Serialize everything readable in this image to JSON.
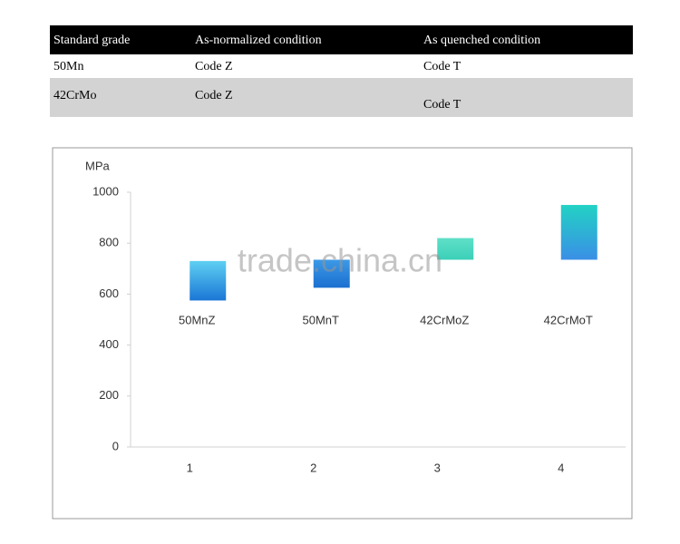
{
  "table": {
    "header": [
      "Standard grade",
      "As-normalized condition",
      "As quenched condition"
    ],
    "rows": [
      [
        "50Mn",
        "Code Z",
        "Code T"
      ],
      [
        "42CrMo",
        "Code Z",
        "Code T"
      ]
    ]
  },
  "chart_data": {
    "type": "floating-bar",
    "y_label": "MPa",
    "xticks": [
      1,
      2,
      3,
      4
    ],
    "bar_labels": [
      "50MnZ",
      "50MnT",
      "42CrMoZ",
      "42CrMoT"
    ],
    "low": [
      575,
      625,
      735,
      735
    ],
    "high": [
      730,
      735,
      820,
      950
    ],
    "colors_top": [
      "#5fd0f2",
      "#3d9ae6",
      "#5fe0c8",
      "#22d2c4"
    ],
    "colors_bottom": [
      "#1a76d6",
      "#1a6fd0",
      "#3ccfb8",
      "#3a8fe6"
    ],
    "xlim": [
      0.5,
      4.5
    ],
    "ylim": [
      0,
      1000
    ],
    "yticks": [
      0,
      200,
      400,
      600,
      800,
      1000
    ]
  },
  "watermark": "trade.china.cn"
}
